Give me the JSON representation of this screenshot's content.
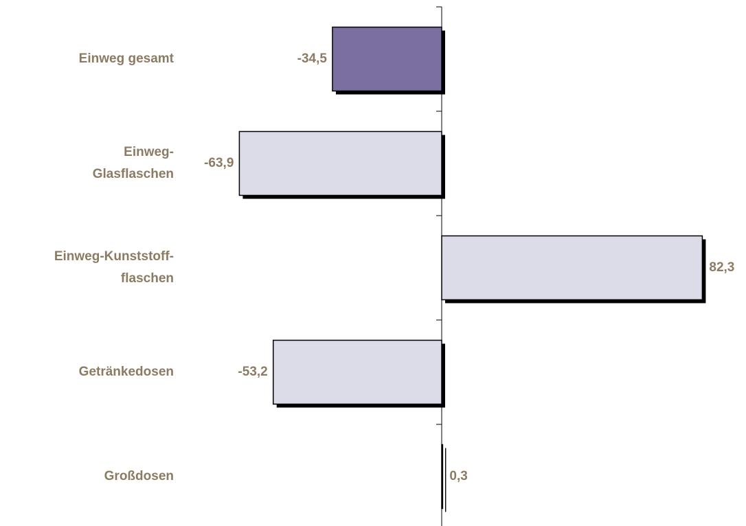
{
  "chart_data": {
    "type": "bar",
    "categories": [
      "Einweg gesamt",
      "Einweg-\nGlasflaschen",
      "Einweg-Kunststoff-\nflaschen",
      "Getränkedosen",
      "Großdosen"
    ],
    "values": [
      -34.5,
      -63.9,
      82.3,
      -53.2,
      0.3
    ],
    "value_labels": [
      "-34,5",
      "-63,9",
      "82,3",
      "-53,2",
      "0,3"
    ],
    "colors": [
      "#7a6fa0",
      "#dcdbe8",
      "#dcdbe8",
      "#dcdbe8",
      "#dcdbe8"
    ]
  }
}
